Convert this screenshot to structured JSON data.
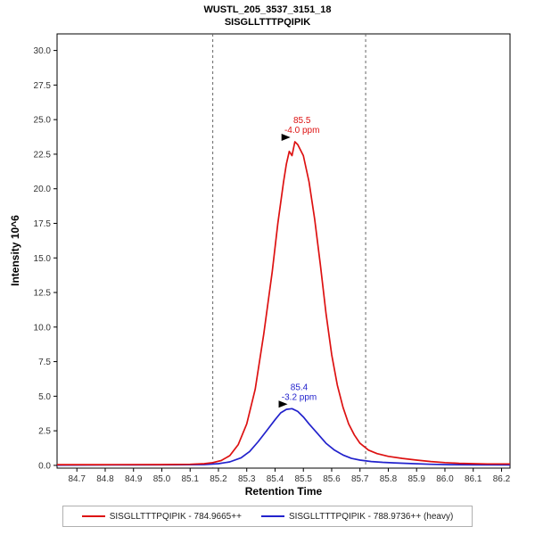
{
  "chart_data": {
    "type": "line",
    "title": "WUSTL_205_3537_3151_18",
    "subtitle": "SISGLLTTTPQIPIK",
    "xlabel": "Retention Time",
    "ylabel": "Intensity 10^6",
    "xlim": [
      84.63,
      86.23
    ],
    "ylim": [
      -0.2,
      31.2
    ],
    "x_ticks": [
      84.7,
      84.8,
      84.9,
      85.0,
      85.1,
      85.2,
      85.3,
      85.4,
      85.5,
      85.6,
      85.7,
      85.8,
      85.9,
      86.0,
      86.1,
      86.2
    ],
    "y_ticks": [
      0,
      2.5,
      5,
      7.5,
      10,
      12.5,
      15,
      17.5,
      20,
      22.5,
      25,
      27.5,
      30
    ],
    "grid": false,
    "legend_position": "bottom",
    "integration_boundaries": [
      85.18,
      85.72
    ],
    "boundary_color": "#666666",
    "series": [
      {
        "name": "SISGLLTTTPQIPIK - 788.9736++ (heavy)",
        "legend_order": 2,
        "color": "#2222cc",
        "x": [
          84.63,
          84.9,
          85.05,
          85.15,
          85.2,
          85.24,
          85.28,
          85.31,
          85.34,
          85.37,
          85.4,
          85.42,
          85.44,
          85.46,
          85.48,
          85.5,
          85.52,
          85.55,
          85.58,
          85.61,
          85.64,
          85.67,
          85.7,
          85.74,
          85.78,
          85.82,
          85.88,
          85.95,
          86.02,
          86.1,
          86.23
        ],
        "y": [
          0.02,
          0.03,
          0.04,
          0.06,
          0.12,
          0.25,
          0.55,
          1.0,
          1.7,
          2.5,
          3.3,
          3.8,
          4.05,
          4.1,
          3.9,
          3.5,
          3.0,
          2.3,
          1.6,
          1.1,
          0.75,
          0.5,
          0.38,
          0.28,
          0.22,
          0.18,
          0.13,
          0.08,
          0.05,
          0.04,
          0.03
        ],
        "annotation": {
          "rt_label": "85.4",
          "ppm_label": "-3.2 ppm",
          "apex_rt": 85.46,
          "apex_intensity": 4.1
        }
      },
      {
        "name": "SISGLLTTTPQIPIK - 784.9665++",
        "legend_order": 1,
        "color": "#dd1111",
        "x": [
          84.63,
          84.8,
          85.0,
          85.1,
          85.15,
          85.18,
          85.21,
          85.24,
          85.27,
          85.3,
          85.33,
          85.36,
          85.39,
          85.41,
          85.43,
          85.44,
          85.45,
          85.46,
          85.47,
          85.48,
          85.5,
          85.52,
          85.54,
          85.56,
          85.58,
          85.6,
          85.62,
          85.64,
          85.66,
          85.68,
          85.7,
          85.73,
          85.76,
          85.8,
          85.85,
          85.9,
          85.95,
          86.0,
          86.05,
          86.1,
          86.15,
          86.23
        ],
        "y": [
          0.05,
          0.05,
          0.06,
          0.08,
          0.12,
          0.2,
          0.35,
          0.7,
          1.5,
          3.0,
          5.5,
          9.5,
          14.0,
          17.5,
          20.5,
          21.8,
          22.7,
          22.4,
          23.4,
          23.2,
          22.4,
          20.5,
          17.8,
          14.5,
          11.0,
          8.0,
          5.8,
          4.2,
          3.0,
          2.2,
          1.6,
          1.1,
          0.85,
          0.65,
          0.5,
          0.38,
          0.28,
          0.2,
          0.15,
          0.12,
          0.1,
          0.1
        ],
        "annotation": {
          "rt_label": "85.5",
          "ppm_label": "-4.0 ppm",
          "apex_rt": 85.47,
          "apex_intensity": 23.4
        }
      }
    ]
  }
}
